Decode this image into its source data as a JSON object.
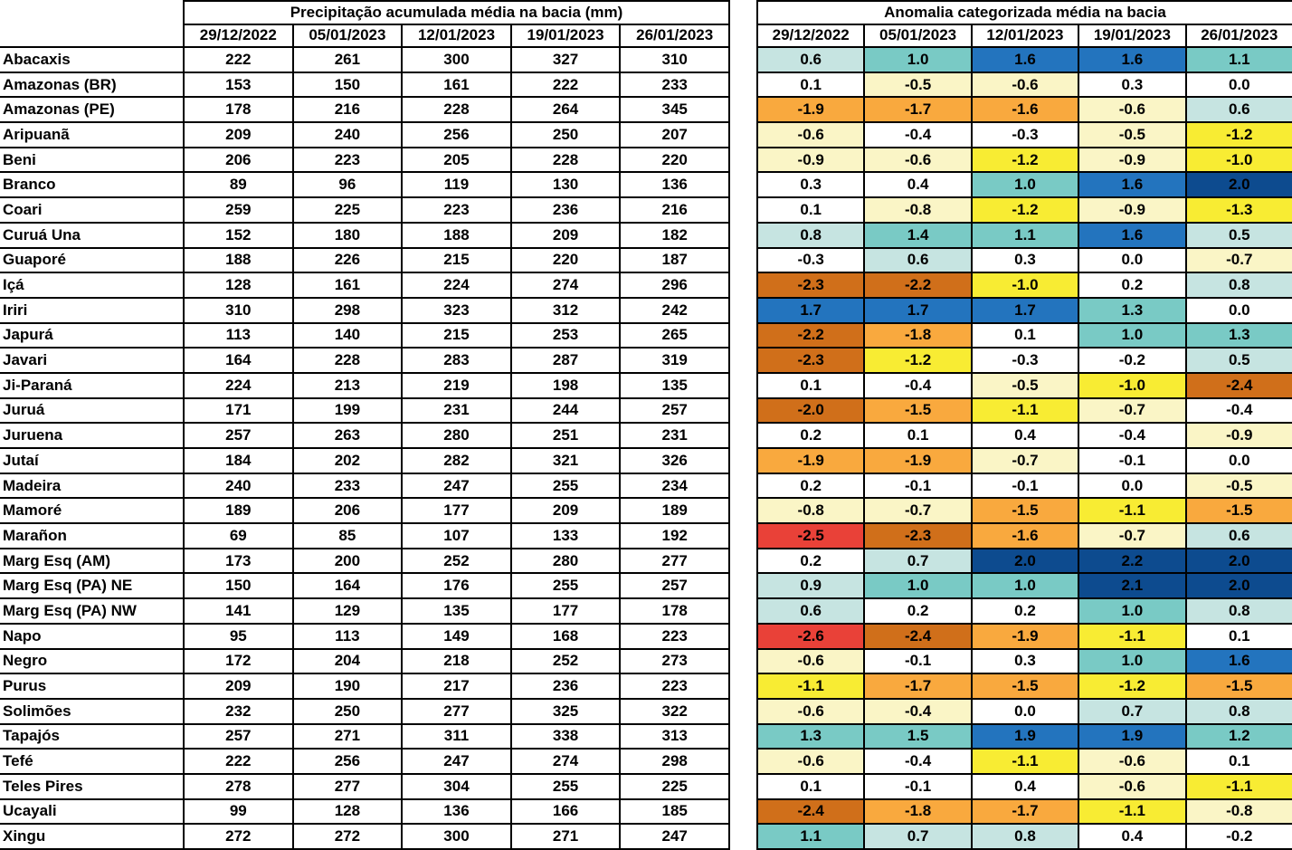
{
  "chart_data": [
    {
      "type": "table",
      "title": "Precipitação acumulada média na bacia (mm)",
      "columns": [
        "29/12/2022",
        "05/01/2023",
        "12/01/2023",
        "19/01/2023",
        "26/01/2023"
      ],
      "row_labels": [
        "Abacaxis",
        "Amazonas (BR)",
        "Amazonas (PE)",
        "Aripuanã",
        "Beni",
        "Branco",
        "Coari",
        "Curuá Una",
        "Guaporé",
        "Içá",
        "Iriri",
        "Japurá",
        "Javari",
        "Ji-Paraná",
        "Juruá",
        "Juruena",
        "Jutaí",
        "Madeira",
        "Mamoré",
        "Marañon",
        "Marg Esq (AM)",
        "Marg Esq (PA) NE",
        "Marg Esq (PA) NW",
        "Napo",
        "Negro",
        "Purus",
        "Solimões",
        "Tapajós",
        "Tefé",
        "Teles Pires",
        "Ucayali",
        "Xingu"
      ],
      "values": [
        [
          222,
          261,
          300,
          327,
          310
        ],
        [
          153,
          150,
          161,
          222,
          233
        ],
        [
          178,
          216,
          228,
          264,
          345
        ],
        [
          209,
          240,
          256,
          250,
          207
        ],
        [
          206,
          223,
          205,
          228,
          220
        ],
        [
          89,
          96,
          119,
          130,
          136
        ],
        [
          259,
          225,
          223,
          236,
          216
        ],
        [
          152,
          180,
          188,
          209,
          182
        ],
        [
          188,
          226,
          215,
          220,
          187
        ],
        [
          128,
          161,
          224,
          274,
          296
        ],
        [
          310,
          298,
          323,
          312,
          242
        ],
        [
          113,
          140,
          215,
          253,
          265
        ],
        [
          164,
          228,
          283,
          287,
          319
        ],
        [
          224,
          213,
          219,
          198,
          135
        ],
        [
          171,
          199,
          231,
          244,
          257
        ],
        [
          257,
          263,
          280,
          251,
          231
        ],
        [
          184,
          202,
          282,
          321,
          326
        ],
        [
          240,
          233,
          247,
          255,
          234
        ],
        [
          189,
          206,
          177,
          209,
          189
        ],
        [
          69,
          85,
          107,
          133,
          192
        ],
        [
          173,
          200,
          252,
          280,
          277
        ],
        [
          150,
          164,
          176,
          255,
          257
        ],
        [
          141,
          129,
          135,
          177,
          178
        ],
        [
          95,
          113,
          149,
          168,
          223
        ],
        [
          172,
          204,
          218,
          252,
          273
        ],
        [
          209,
          190,
          217,
          236,
          223
        ],
        [
          232,
          250,
          277,
          325,
          322
        ],
        [
          257,
          271,
          311,
          338,
          313
        ],
        [
          222,
          256,
          247,
          274,
          298
        ],
        [
          278,
          277,
          304,
          255,
          225
        ],
        [
          99,
          128,
          136,
          166,
          185
        ],
        [
          272,
          272,
          300,
          271,
          247
        ]
      ]
    },
    {
      "type": "heatmap",
      "title": "Anomalia categorizada média na bacia",
      "columns": [
        "29/12/2022",
        "05/01/2023",
        "12/01/2023",
        "19/01/2023",
        "26/01/2023"
      ],
      "row_labels": [
        "Abacaxis",
        "Amazonas (BR)",
        "Amazonas (PE)",
        "Aripuanã",
        "Beni",
        "Branco",
        "Coari",
        "Curuá Una",
        "Guaporé",
        "Içá",
        "Iriri",
        "Japurá",
        "Javari",
        "Ji-Paraná",
        "Juruá",
        "Juruena",
        "Jutaí",
        "Madeira",
        "Mamoré",
        "Marañon",
        "Marg Esq (AM)",
        "Marg Esq (PA) NE",
        "Marg Esq (PA) NW",
        "Napo",
        "Negro",
        "Purus",
        "Solimões",
        "Tapajós",
        "Tefé",
        "Teles Pires",
        "Ucayali",
        "Xingu"
      ],
      "values": [
        [
          "0.6",
          "1.0",
          "1.6",
          "1.6",
          "1.1"
        ],
        [
          "0.1",
          "-0.5",
          "-0.6",
          "0.3",
          "0.0"
        ],
        [
          "-1.9",
          "-1.7",
          "-1.6",
          "-0.6",
          "0.6"
        ],
        [
          "-0.6",
          "-0.4",
          "-0.3",
          "-0.5",
          "-1.2"
        ],
        [
          "-0.9",
          "-0.6",
          "-1.2",
          "-0.9",
          "-1.0"
        ],
        [
          "0.3",
          "0.4",
          "1.0",
          "1.6",
          "2.0"
        ],
        [
          "0.1",
          "-0.8",
          "-1.2",
          "-0.9",
          "-1.3"
        ],
        [
          "0.8",
          "1.4",
          "1.1",
          "1.6",
          "0.5"
        ],
        [
          "-0.3",
          "0.6",
          "0.3",
          "0.0",
          "-0.7"
        ],
        [
          "-2.3",
          "-2.2",
          "-1.0",
          "0.2",
          "0.8"
        ],
        [
          "1.7",
          "1.7",
          "1.7",
          "1.3",
          "0.0"
        ],
        [
          "-2.2",
          "-1.8",
          "0.1",
          "1.0",
          "1.3"
        ],
        [
          "-2.3",
          "-1.2",
          "-0.3",
          "-0.2",
          "0.5"
        ],
        [
          "0.1",
          "-0.4",
          "-0.5",
          "-1.0",
          "-2.4"
        ],
        [
          "-2.0",
          "-1.5",
          "-1.1",
          "-0.7",
          "-0.4"
        ],
        [
          "0.2",
          "0.1",
          "0.4",
          "-0.4",
          "-0.9"
        ],
        [
          "-1.9",
          "-1.9",
          "-0.7",
          "-0.1",
          "0.0"
        ],
        [
          "0.2",
          "-0.1",
          "-0.1",
          "0.0",
          "-0.5"
        ],
        [
          "-0.8",
          "-0.7",
          "-1.5",
          "-1.1",
          "-1.5"
        ],
        [
          "-2.5",
          "-2.3",
          "-1.6",
          "-0.7",
          "0.6"
        ],
        [
          "0.2",
          "0.7",
          "2.0",
          "2.2",
          "2.0"
        ],
        [
          "0.9",
          "1.0",
          "1.0",
          "2.1",
          "2.0"
        ],
        [
          "0.6",
          "0.2",
          "0.2",
          "1.0",
          "0.8"
        ],
        [
          "-2.6",
          "-2.4",
          "-1.9",
          "-1.1",
          "0.1"
        ],
        [
          "-0.6",
          "-0.1",
          "0.3",
          "1.0",
          "1.6"
        ],
        [
          "-1.1",
          "-1.7",
          "-1.5",
          "-1.2",
          "-1.5"
        ],
        [
          "-0.6",
          "-0.4",
          "0.0",
          "0.7",
          "0.8"
        ],
        [
          "1.3",
          "1.5",
          "1.9",
          "1.9",
          "1.2"
        ],
        [
          "-0.6",
          "-0.4",
          "-1.1",
          "-0.6",
          "0.1"
        ],
        [
          "0.1",
          "-0.1",
          "0.4",
          "-0.6",
          "-1.1"
        ],
        [
          "-2.4",
          "-1.8",
          "-1.7",
          "-1.1",
          "-0.8"
        ],
        [
          "1.1",
          "0.7",
          "0.8",
          "0.4",
          "-0.2"
        ]
      ],
      "cell_categories": [
        [
          "LT",
          "MT",
          "B",
          "B",
          "MT"
        ],
        [
          "W",
          "PY",
          "PY",
          "W",
          "W"
        ],
        [
          "O",
          "O",
          "O",
          "PY",
          "LT"
        ],
        [
          "PY",
          "W",
          "W",
          "PY",
          "BY"
        ],
        [
          "PY",
          "PY",
          "BY",
          "PY",
          "BY"
        ],
        [
          "W",
          "W",
          "MT",
          "B",
          "DN"
        ],
        [
          "W",
          "PY",
          "BY",
          "PY",
          "BY"
        ],
        [
          "LT",
          "MT",
          "MT",
          "B",
          "LT"
        ],
        [
          "W",
          "LT",
          "W",
          "W",
          "PY"
        ],
        [
          "DO",
          "DO",
          "BY",
          "W",
          "LT"
        ],
        [
          "B",
          "B",
          "B",
          "MT",
          "W"
        ],
        [
          "DO",
          "O",
          "W",
          "MT",
          "MT"
        ],
        [
          "DO",
          "BY",
          "W",
          "W",
          "LT"
        ],
        [
          "W",
          "W",
          "PY",
          "BY",
          "DO"
        ],
        [
          "DO",
          "O",
          "BY",
          "PY",
          "W"
        ],
        [
          "W",
          "W",
          "W",
          "W",
          "PY"
        ],
        [
          "O",
          "O",
          "PY",
          "W",
          "W"
        ],
        [
          "W",
          "W",
          "W",
          "W",
          "PY"
        ],
        [
          "PY",
          "PY",
          "O",
          "BY",
          "O"
        ],
        [
          "R",
          "DO",
          "O",
          "PY",
          "LT"
        ],
        [
          "W",
          "LT",
          "DN",
          "DN",
          "DN"
        ],
        [
          "LT",
          "MT",
          "MT",
          "DN",
          "DN"
        ],
        [
          "LT",
          "W",
          "W",
          "MT",
          "LT"
        ],
        [
          "R",
          "DO",
          "O",
          "BY",
          "W"
        ],
        [
          "PY",
          "W",
          "W",
          "MT",
          "B"
        ],
        [
          "BY",
          "O",
          "O",
          "BY",
          "O"
        ],
        [
          "PY",
          "PY",
          "W",
          "LT",
          "LT"
        ],
        [
          "MT",
          "MT",
          "B",
          "B",
          "MT"
        ],
        [
          "PY",
          "W",
          "BY",
          "PY",
          "W"
        ],
        [
          "W",
          "W",
          "W",
          "PY",
          "BY"
        ],
        [
          "DO",
          "O",
          "O",
          "BY",
          "PY"
        ],
        [
          "MT",
          "LT",
          "LT",
          "W",
          "W"
        ]
      ],
      "legend_position": "none"
    }
  ],
  "anomaly_palette": {
    "W": "#ffffff",
    "LT": "#c6e4e1",
    "MT": "#79cac5",
    "B": "#2374be",
    "DN": "#0d4b8f",
    "PY": "#faf5c6",
    "BY": "#f8ec33",
    "O": "#f9a93e",
    "DO": "#d06f1a",
    "R": "#e94138"
  },
  "border_color": "#000000"
}
